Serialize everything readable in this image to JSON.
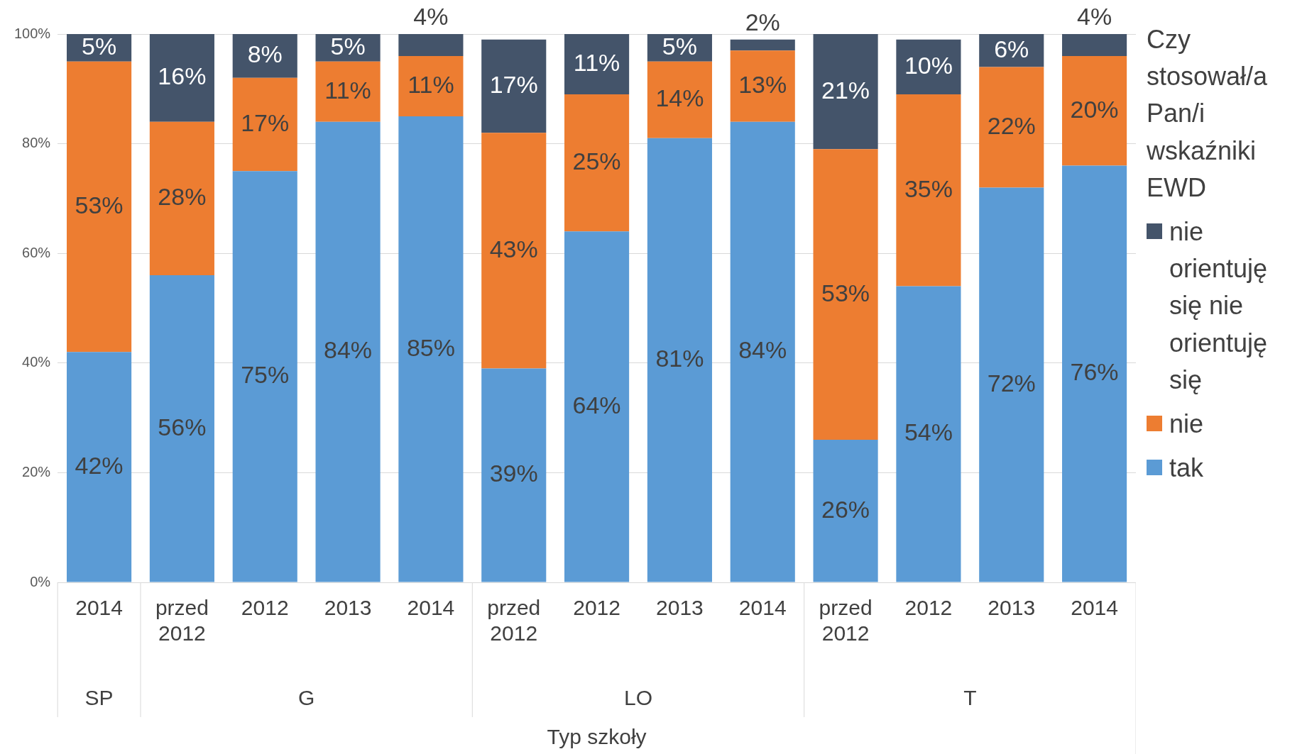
{
  "chart_data": {
    "type": "bar",
    "stacked": true,
    "xlabel": "Typ szkoły",
    "legend_title": "Czy stosował/a Pan/i wskaźniki EWD",
    "legend": "right",
    "grid": "y",
    "categories": [
      "2014",
      "przed 2012",
      "2012",
      "2013",
      "2014",
      "przed 2012",
      "2012",
      "2013",
      "2014",
      "przed 2012",
      "2012",
      "2013",
      "2014"
    ],
    "annotations": [
      "SP",
      "G",
      "LO",
      "T"
    ],
    "ylim": [
      0,
      100
    ],
    "yticks": [
      {
        "value": 0,
        "label": "0%"
      },
      {
        "value": 20,
        "label": "20%"
      },
      {
        "value": 40,
        "label": "40%"
      },
      {
        "value": 60,
        "label": "60%"
      },
      {
        "value": 80,
        "label": "80%"
      },
      {
        "value": 100,
        "label": "100%"
      }
    ],
    "series": [
      {
        "name": "tak",
        "color": "#5b9bd5",
        "values": [
          42,
          56,
          75,
          84,
          85,
          39,
          64,
          81,
          84,
          26,
          54,
          72,
          76
        ],
        "value_labels": [
          "42%",
          "56%",
          "75%",
          "84%",
          "85%",
          "39%",
          "64%",
          "81%",
          "84%",
          "26%",
          "54%",
          "72%",
          "76%"
        ]
      },
      {
        "name": "nie",
        "color": "#ed7d31",
        "values": [
          53,
          28,
          17,
          11,
          11,
          43,
          25,
          14,
          13,
          53,
          35,
          22,
          20
        ],
        "value_labels": [
          "53%",
          "28%",
          "17%",
          "11%",
          "11%",
          "43%",
          "25%",
          "14%",
          "13%",
          "53%",
          "35%",
          "22%",
          "20%"
        ]
      },
      {
        "name": "nie orientuję się nie orientuję się",
        "color": "#44546a",
        "values": [
          5,
          16,
          8,
          5,
          4,
          17,
          11,
          5,
          2,
          21,
          10,
          6,
          4
        ],
        "value_labels": [
          "5%",
          "16%",
          "8%",
          "5%",
          "4%",
          "17%",
          "11%",
          "5%",
          "2%",
          "21%",
          "10%",
          "6%",
          "4%"
        ]
      }
    ]
  }
}
